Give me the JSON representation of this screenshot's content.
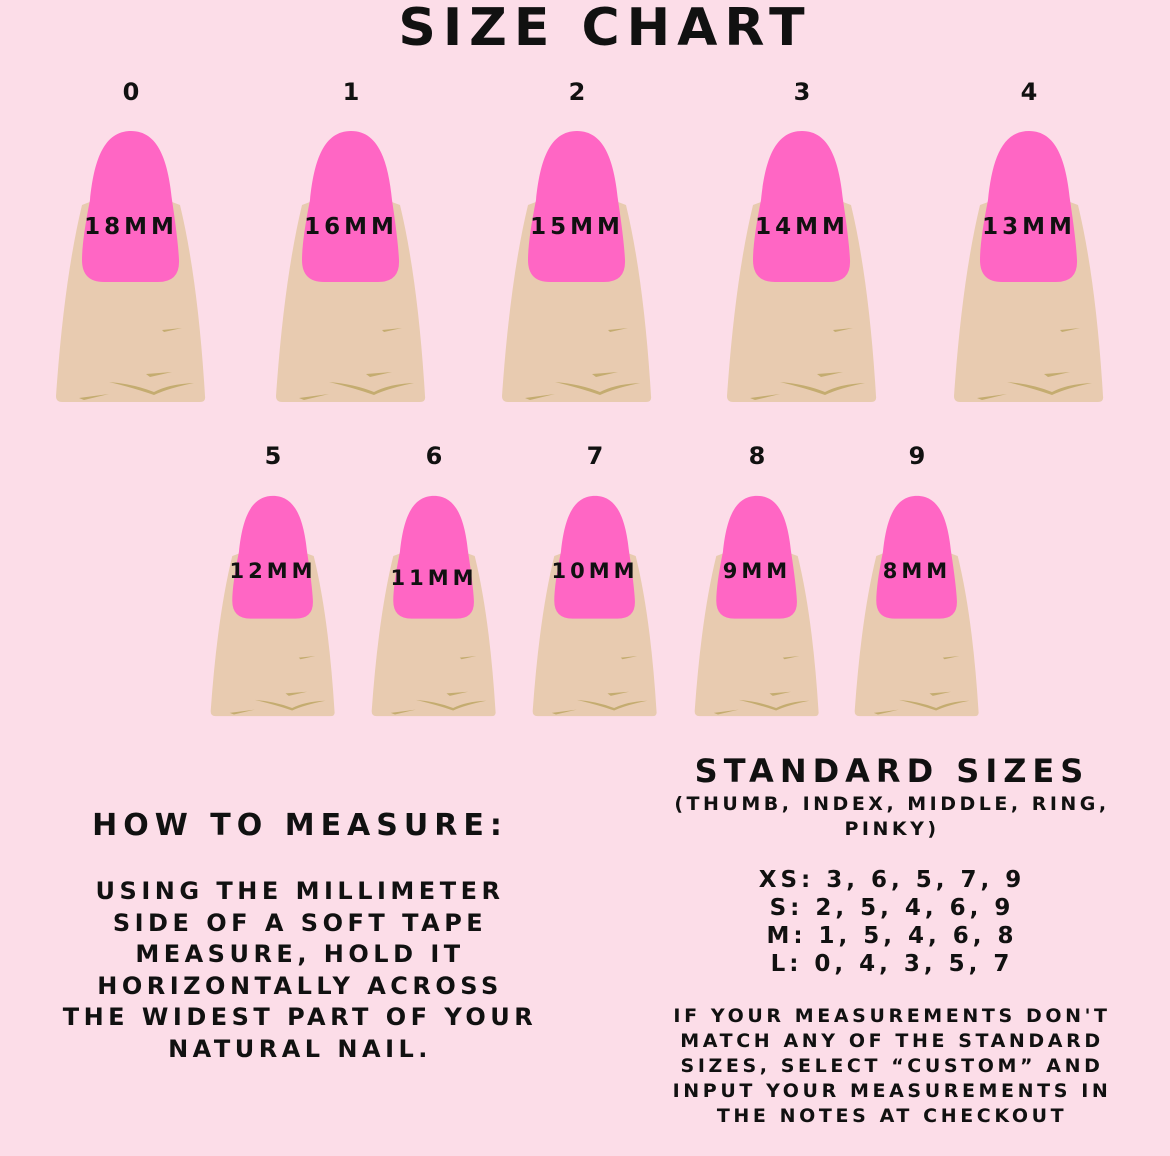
{
  "title": "SIZE CHART",
  "colors": {
    "background": "#fcdde8",
    "nail": "#ff66c4",
    "skin": "#e8cbb0",
    "crease": "#c4ac70"
  },
  "row1": [
    {
      "size": "0",
      "width": "18MM"
    },
    {
      "size": "1",
      "width": "16MM"
    },
    {
      "size": "2",
      "width": "15MM"
    },
    {
      "size": "3",
      "width": "14MM"
    },
    {
      "size": "4",
      "width": "13MM"
    }
  ],
  "row2": [
    {
      "size": "5",
      "width": "12MM"
    },
    {
      "size": "6",
      "width": "11MM"
    },
    {
      "size": "7",
      "width": "10MM"
    },
    {
      "size": "8",
      "width": "9MM"
    },
    {
      "size": "9",
      "width": "8MM"
    }
  ],
  "how_to_measure": {
    "heading": "HOW TO MEASURE:",
    "lines": [
      "USING THE MILLIMETER",
      "SIDE OF A SOFT TAPE",
      "MEASURE, HOLD IT",
      "HORIZONTALLY ACROSS",
      "THE WIDEST PART OF YOUR",
      "NATURAL NAIL."
    ]
  },
  "standard_sizes": {
    "heading": "STANDARD SIZES",
    "subtitle_lines": [
      "(THUMB, INDEX, MIDDLE, RING,",
      "PINKY)"
    ],
    "sizes": [
      "XS: 3, 6, 5, 7, 9",
      "S: 2, 5, 4, 6, 9",
      "M: 1, 5, 4, 6, 8",
      "L: 0, 4, 3, 5, 7"
    ],
    "note_lines": [
      "IF YOUR MEASUREMENTS DON'T",
      "MATCH ANY OF THE STANDARD",
      "SIZES, SELECT “CUSTOM” AND",
      "INPUT YOUR MEASUREMENTS IN",
      "THE NOTES AT CHECKOUT"
    ]
  }
}
